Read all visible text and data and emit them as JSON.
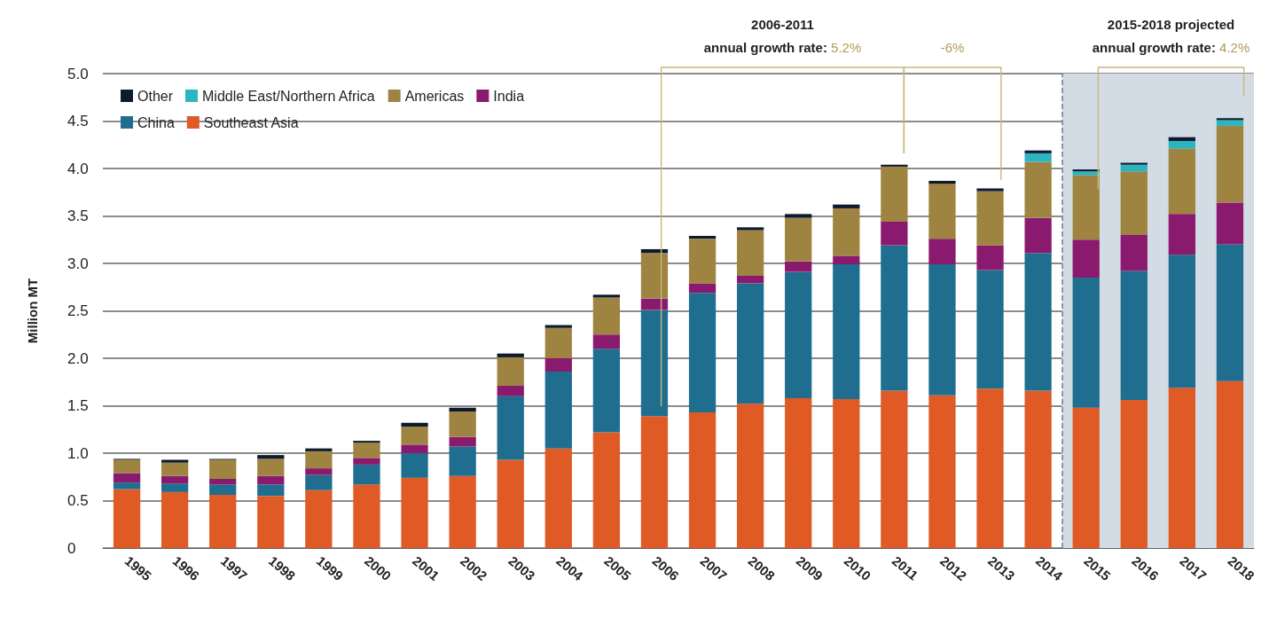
{
  "chart_data": {
    "type": "bar",
    "stacked": true,
    "ylabel": "Million MT",
    "categories": [
      "1995",
      "1996",
      "1997",
      "1998",
      "1999",
      "2000",
      "2001",
      "2002",
      "2003",
      "2004",
      "2005",
      "2006",
      "2007",
      "2008",
      "2009",
      "2010",
      "2011",
      "2012",
      "2013",
      "2014",
      "2015",
      "2016",
      "2017",
      "2018"
    ],
    "series": [
      {
        "name": "Southeast Asia",
        "color": "#e05a26",
        "values": [
          0.62,
          0.59,
          0.56,
          0.55,
          0.61,
          0.67,
          0.74,
          0.76,
          0.93,
          1.05,
          1.22,
          1.39,
          1.43,
          1.52,
          1.58,
          1.57,
          1.66,
          1.61,
          1.68,
          1.66,
          1.48,
          1.56,
          1.69,
          1.76
        ]
      },
      {
        "name": "China",
        "color": "#1f6e8f",
        "values": [
          0.07,
          0.09,
          0.11,
          0.12,
          0.16,
          0.21,
          0.26,
          0.31,
          0.67,
          0.81,
          0.88,
          1.12,
          1.26,
          1.27,
          1.33,
          1.42,
          1.53,
          1.38,
          1.25,
          1.45,
          1.37,
          1.36,
          1.4,
          1.44
        ]
      },
      {
        "name": "India",
        "color": "#8a1a6e",
        "values": [
          0.1,
          0.08,
          0.06,
          0.09,
          0.07,
          0.07,
          0.09,
          0.1,
          0.11,
          0.14,
          0.15,
          0.12,
          0.1,
          0.08,
          0.11,
          0.09,
          0.25,
          0.27,
          0.26,
          0.37,
          0.4,
          0.38,
          0.43,
          0.44
        ]
      },
      {
        "name": "Americas",
        "color": "#9e8440",
        "values": [
          0.14,
          0.14,
          0.2,
          0.18,
          0.18,
          0.16,
          0.19,
          0.27,
          0.3,
          0.32,
          0.39,
          0.48,
          0.47,
          0.48,
          0.46,
          0.5,
          0.58,
          0.58,
          0.57,
          0.59,
          0.68,
          0.67,
          0.69,
          0.81
        ]
      },
      {
        "name": "Middle East/Northern Africa",
        "color": "#2bb5c0",
        "values": [
          0,
          0,
          0,
          0,
          0,
          0,
          0,
          0,
          0,
          0,
          0,
          0,
          0,
          0,
          0,
          0,
          0,
          0,
          0,
          0.09,
          0.04,
          0.07,
          0.08,
          0.06
        ]
      },
      {
        "name": "Other",
        "color": "#0f1a2e",
        "values": [
          0.01,
          0.03,
          0.01,
          0.04,
          0.03,
          0.02,
          0.04,
          0.04,
          0.04,
          0.03,
          0.03,
          0.04,
          0.03,
          0.03,
          0.04,
          0.04,
          0.02,
          0.03,
          0.03,
          0.03,
          0.02,
          0.02,
          0.04,
          0.02
        ]
      }
    ],
    "ylim": [
      0,
      5
    ],
    "yticks": [
      0,
      0.5,
      {
        "value": 1,
        "label": "1.0"
      },
      1.5,
      {
        "value": 2,
        "label": "2.0"
      },
      2.5,
      {
        "value": 3,
        "label": "3.0"
      },
      3.5,
      {
        "value": 4,
        "label": "4.0"
      },
      4.5,
      {
        "value": 5,
        "label": "5.0"
      }
    ],
    "grid": "y",
    "legend": "top left",
    "bands": [
      {
        "axis": "x",
        "from": "2015",
        "to": "2018",
        "color": "#d3dbe4"
      }
    ],
    "ref_lines": [
      {
        "axis": "x",
        "value": "2015",
        "line_style": "dashed",
        "color": "#6f7f92"
      }
    ],
    "annotations": [
      "2006-2011\nannual growth rate: 5.2%",
      "-6%",
      "2015-2018 projected\nannual growth rate: 4.2%"
    ]
  }
}
